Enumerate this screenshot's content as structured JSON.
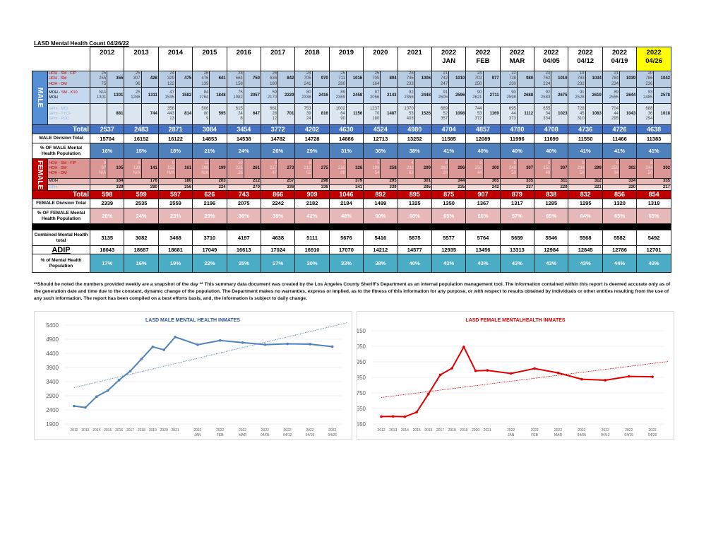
{
  "title": "LASD Mental Health Count 04/26/22",
  "columns": [
    {
      "year": "2012",
      "sub": ""
    },
    {
      "year": "2013",
      "sub": ""
    },
    {
      "year": "2014",
      "sub": ""
    },
    {
      "year": "2015",
      "sub": ""
    },
    {
      "year": "2016",
      "sub": ""
    },
    {
      "year": "2017",
      "sub": ""
    },
    {
      "year": "2018",
      "sub": ""
    },
    {
      "year": "2019",
      "sub": ""
    },
    {
      "year": "2020",
      "sub": ""
    },
    {
      "year": "2021",
      "sub": ""
    },
    {
      "year": "2022",
      "sub": "JAN"
    },
    {
      "year": "2022",
      "sub": "FEB"
    },
    {
      "year": "2022",
      "sub": "MAR"
    },
    {
      "year": "2022",
      "sub": "04/05"
    },
    {
      "year": "2022",
      "sub": "04/12"
    },
    {
      "year": "2022",
      "sub": "04/19"
    },
    {
      "year": "2022",
      "sub": "04/26"
    }
  ],
  "highlight_color": "#ffff00",
  "male": {
    "label": "MALE",
    "hoh": {
      "labels": [
        "HOH - SM - FIP",
        "HOH - SM",
        "HOH - DM"
      ],
      "values": [
        [
          "25",
          "255",
          "75"
        ],
        [
          "25",
          "307",
          "96"
        ],
        [
          "24",
          "329",
          "122"
        ],
        [
          "26",
          "476",
          "139"
        ],
        [
          "28",
          "564",
          "158"
        ],
        [
          "26",
          "636",
          "180"
        ],
        [
          "24",
          "705",
          "241"
        ],
        [
          "25",
          "711",
          "280"
        ],
        [
          "25",
          "705",
          "164"
        ],
        [
          "28",
          "745",
          "233"
        ],
        [
          "21",
          "742",
          "247"
        ],
        [
          "24",
          "703",
          "250"
        ],
        [
          "22",
          "728",
          "230"
        ],
        [
          "24",
          "762",
          "224"
        ],
        [
          "19",
          "783",
          "232"
        ],
        [
          "21",
          "784",
          "234"
        ],
        [
          "20",
          "786",
          "236"
        ]
      ],
      "totals": [
        "355",
        "428",
        "475",
        "641",
        "750",
        "842",
        "970",
        "1016",
        "894",
        "1006",
        "1010",
        "977",
        "980",
        "1010",
        "1034",
        "1039",
        "1042"
      ]
    },
    "moh": {
      "labels": [
        "MOH - SM - K10",
        "MOH"
      ],
      "values": [
        [
          "N/A",
          "1301"
        ],
        [
          "25",
          "1286"
        ],
        [
          "47",
          "1535"
        ],
        [
          "84",
          "1764"
        ],
        [
          "75",
          "1982"
        ],
        [
          "59",
          "2170"
        ],
        [
          "80",
          "2336"
        ],
        [
          "89",
          "2369"
        ],
        [
          "87",
          "2056"
        ],
        [
          "92",
          "2356"
        ],
        [
          "91",
          "2505"
        ],
        [
          "90",
          "2621"
        ],
        [
          "90",
          "2598"
        ],
        [
          "92",
          "2583"
        ],
        [
          "91",
          "2528"
        ],
        [
          "89",
          "2555"
        ],
        [
          "93",
          "2485"
        ]
      ],
      "totals": [
        "1301",
        "1311",
        "1582",
        "1848",
        "2057",
        "2229",
        "2416",
        "2458",
        "2143",
        "2448",
        "2596",
        "2711",
        "2688",
        "2675",
        "2619",
        "2644",
        "2578"
      ]
    },
    "gp": {
      "labels": [
        "GPm - MCI",
        "GPm - TTCF",
        "GPm - PDC"
      ],
      "values": [
        [
          "",
          "",
          ""
        ],
        [
          "",
          "",
          ""
        ],
        [
          "358",
          "443",
          "13"
        ],
        [
          "506",
          "80",
          "9"
        ],
        [
          "615",
          "24",
          "8"
        ],
        [
          "661",
          "28",
          "12"
        ],
        [
          "753",
          "39",
          "24"
        ],
        [
          "1002",
          "64",
          "90"
        ],
        [
          "1237",
          "70",
          "180"
        ],
        [
          "1070",
          "53",
          "403"
        ],
        [
          "689",
          "52",
          "357"
        ],
        [
          "744",
          "53",
          "372"
        ],
        [
          "695",
          "44",
          "373"
        ],
        [
          "655",
          "34",
          "334"
        ],
        [
          "728",
          "45",
          "310"
        ],
        [
          "704",
          "44",
          "295"
        ],
        [
          "688",
          "36",
          "294"
        ]
      ],
      "totals": [
        "881",
        "744",
        "814",
        "595",
        "647",
        "701",
        "816",
        "1156",
        "1487",
        "1526",
        "1098",
        "1169",
        "1112",
        "1023",
        "1083",
        "1043",
        "1018"
      ]
    },
    "total_label": "Total",
    "totals": [
      "2537",
      "2483",
      "2871",
      "3084",
      "3454",
      "3772",
      "4202",
      "4630",
      "4524",
      "4980",
      "4704",
      "4857",
      "4780",
      "4708",
      "4736",
      "4726",
      "4638"
    ],
    "division_label": "MALE Division Total",
    "division": [
      "15704",
      "16152",
      "16122",
      "14853",
      "14538",
      "14782",
      "14728",
      "14886",
      "12713",
      "13252",
      "11585",
      "12089",
      "11996",
      "11699",
      "11550",
      "11466",
      "11383"
    ],
    "pct_label": "% OF MALE Mental Health Population",
    "pct": [
      "16%",
      "15%",
      "18%",
      "21%",
      "24%",
      "26%",
      "29%",
      "31%",
      "36%",
      "38%",
      "41%",
      "40%",
      "40%",
      "40%",
      "41%",
      "41%",
      "41%"
    ]
  },
  "female": {
    "label": "FEMALE",
    "hoh": {
      "labels": [
        "HOH - SM - FIP",
        "HOH - SM",
        "HOH - DM"
      ],
      "values": [
        [
          "8",
          "97",
          "N/A"
        ],
        [
          "8",
          "133",
          "N/A"
        ],
        [
          "9",
          "152",
          "N/A"
        ],
        [
          "11",
          "188",
          "N/A"
        ],
        [
          "10",
          "225",
          "26"
        ],
        [
          "9",
          "217",
          "47"
        ],
        [
          "8",
          "212",
          "55"
        ],
        [
          "7",
          "230",
          "89"
        ],
        [
          "5",
          "199",
          "54"
        ],
        [
          "4",
          "232",
          "63"
        ],
        [
          "8",
          "260",
          "28"
        ],
        [
          "8",
          "250",
          "44"
        ],
        [
          "8",
          "248",
          "50"
        ],
        [
          "8",
          "251",
          "48"
        ],
        [
          "9",
          "234",
          "56"
        ],
        [
          "9",
          "259",
          "34"
        ],
        [
          "8",
          "244",
          "50"
        ]
      ],
      "totals": [
        "105",
        "141",
        "161",
        "199",
        "261",
        "273",
        "275",
        "326",
        "258",
        "299",
        "296",
        "300",
        "307",
        "307",
        "299",
        "302",
        "302"
      ]
    },
    "moh": {
      "label": "MOH",
      "totals": [
        "164",
        "176",
        "180",
        "203",
        "212",
        "257",
        "298",
        "379",
        "295",
        "301",
        "344",
        "365",
        "335",
        "311",
        "312",
        "334",
        "335"
      ]
    },
    "gp": {
      "label": "GPm",
      "totals": [
        "329",
        "280",
        "256",
        "224",
        "270",
        "336",
        "336",
        "341",
        "339",
        "295",
        "235",
        "242",
        "237",
        "220",
        "221",
        "220",
        "217"
      ]
    },
    "total_label": "Total",
    "totals": [
      "598",
      "599",
      "597",
      "626",
      "743",
      "866",
      "909",
      "1046",
      "892",
      "895",
      "875",
      "907",
      "879",
      "838",
      "832",
      "856",
      "854"
    ],
    "division_label": "FEMALE Division Total",
    "division": [
      "2339",
      "2535",
      "2559",
      "2196",
      "2075",
      "2242",
      "2182",
      "2184",
      "1499",
      "1325",
      "1350",
      "1367",
      "1317",
      "1285",
      "1295",
      "1320",
      "1318"
    ],
    "pct_label": "% OF FEMALE Mental Health Population",
    "pct": [
      "26%",
      "24%",
      "23%",
      "29%",
      "36%",
      "39%",
      "42%",
      "48%",
      "60%",
      "68%",
      "65%",
      "66%",
      "67%",
      "65%",
      "64%",
      "65%",
      "65%"
    ]
  },
  "combined": {
    "label": "Combined Mental Health total",
    "values": [
      "3135",
      "3082",
      "3468",
      "3710",
      "4197",
      "4638",
      "5111",
      "5676",
      "5416",
      "5875",
      "5577",
      "5764",
      "5659",
      "5546",
      "5568",
      "5582",
      "5492"
    ]
  },
  "adip": {
    "label": "ADIP",
    "values": [
      "18043",
      "18687",
      "18681",
      "17049",
      "16613",
      "17024",
      "16910",
      "17070",
      "14212",
      "14577",
      "12935",
      "13456",
      "13313",
      "12984",
      "12845",
      "12786",
      "12701"
    ]
  },
  "pct_mh": {
    "label": "% of Mental Health Population",
    "values": [
      "17%",
      "16%",
      "19%",
      "22%",
      "25%",
      "27%",
      "30%",
      "33%",
      "38%",
      "40%",
      "43%",
      "43%",
      "43%",
      "43%",
      "43%",
      "44%",
      "43%"
    ]
  },
  "disclaimer": "**Should be noted the numbers provided weekly are a snapshot of the day ** This summary data document was created by the Los Angeles County Sheriff's Department as an internal population management tool.  The information contained within this report is deemed accurate only as of the generation date and time due to the constant, dynamic change of the population.  The Department makes no warranties, express or implied, as to the fitness of this information for any purpose, or with respect to results obtained by individuals or other entities resulting from the use of any such information.  The report has been compiled on a best efforts basis, and, the information is subject to daily change.",
  "chart_data": [
    {
      "type": "line",
      "title": "LASD MALE MENTAL HEALTH INMATES",
      "categories": [
        "2012",
        "2013",
        "2014",
        "2015",
        "2016",
        "2017",
        "2018",
        "2019",
        "2020",
        "2021",
        "2022 JAN",
        "2022 FEB",
        "2022 MAR",
        "2022 04/05",
        "2022 04/12",
        "2022 04/19",
        "2022 04/26"
      ],
      "values": [
        2537,
        2483,
        2871,
        3084,
        3454,
        3772,
        4202,
        4630,
        4524,
        4980,
        4704,
        4857,
        4780,
        4708,
        4736,
        4726,
        4638
      ],
      "ylim": [
        1900,
        5400
      ],
      "yticks": [
        "1900",
        "2400",
        "2900",
        "3400",
        "3900",
        "4400",
        "4900",
        "5400"
      ],
      "trendline": "linear",
      "grid": true,
      "color": "#4f81bd"
    },
    {
      "type": "line",
      "title": "LASD FEMALE MENTALHEALTH INMATES",
      "categories": [
        "2012",
        "2013",
        "2014",
        "2015",
        "2016",
        "2017",
        "2018",
        "2019",
        "2020",
        "2021",
        "2022 JAN",
        "2022 FEB",
        "2022 MAR",
        "2022 04/05",
        "2022 04/12",
        "2022 04/19",
        "2022 04/26"
      ],
      "values": [
        598,
        599,
        597,
        626,
        743,
        866,
        909,
        1046,
        892,
        895,
        875,
        907,
        879,
        838,
        832,
        856,
        854
      ],
      "ylim": [
        550,
        1150
      ],
      "yticks": [
        "550",
        "650",
        "750",
        "850",
        "950",
        "1050",
        "1150"
      ],
      "trendline": "linear",
      "grid": true,
      "color": "#e00000"
    }
  ]
}
